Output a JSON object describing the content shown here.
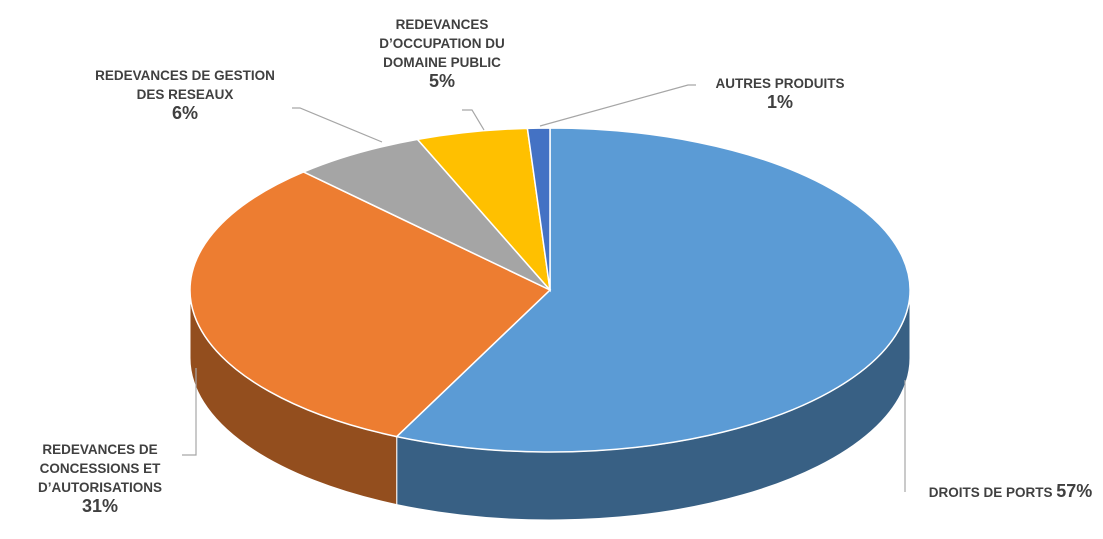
{
  "chart_data": {
    "type": "pie",
    "categories": [
      "DROITS DE PORTS",
      "REDEVANCES DE CONCESSIONS ET D’AUTORISATIONS",
      "REDEVANCES DE GESTION DES RESEAUX",
      "REDEVANCES D’OCCUPATION DU DOMAINE PUBLIC",
      "AUTRES PRODUITS"
    ],
    "values": [
      57,
      31,
      6,
      5,
      1
    ],
    "value_labels": [
      "57%",
      "31%",
      "6%",
      "5%",
      "1%"
    ],
    "colors": [
      "#5b9bd5",
      "#ed7d31",
      "#a5a5a5",
      "#ffc000",
      "#4472c4"
    ]
  }
}
